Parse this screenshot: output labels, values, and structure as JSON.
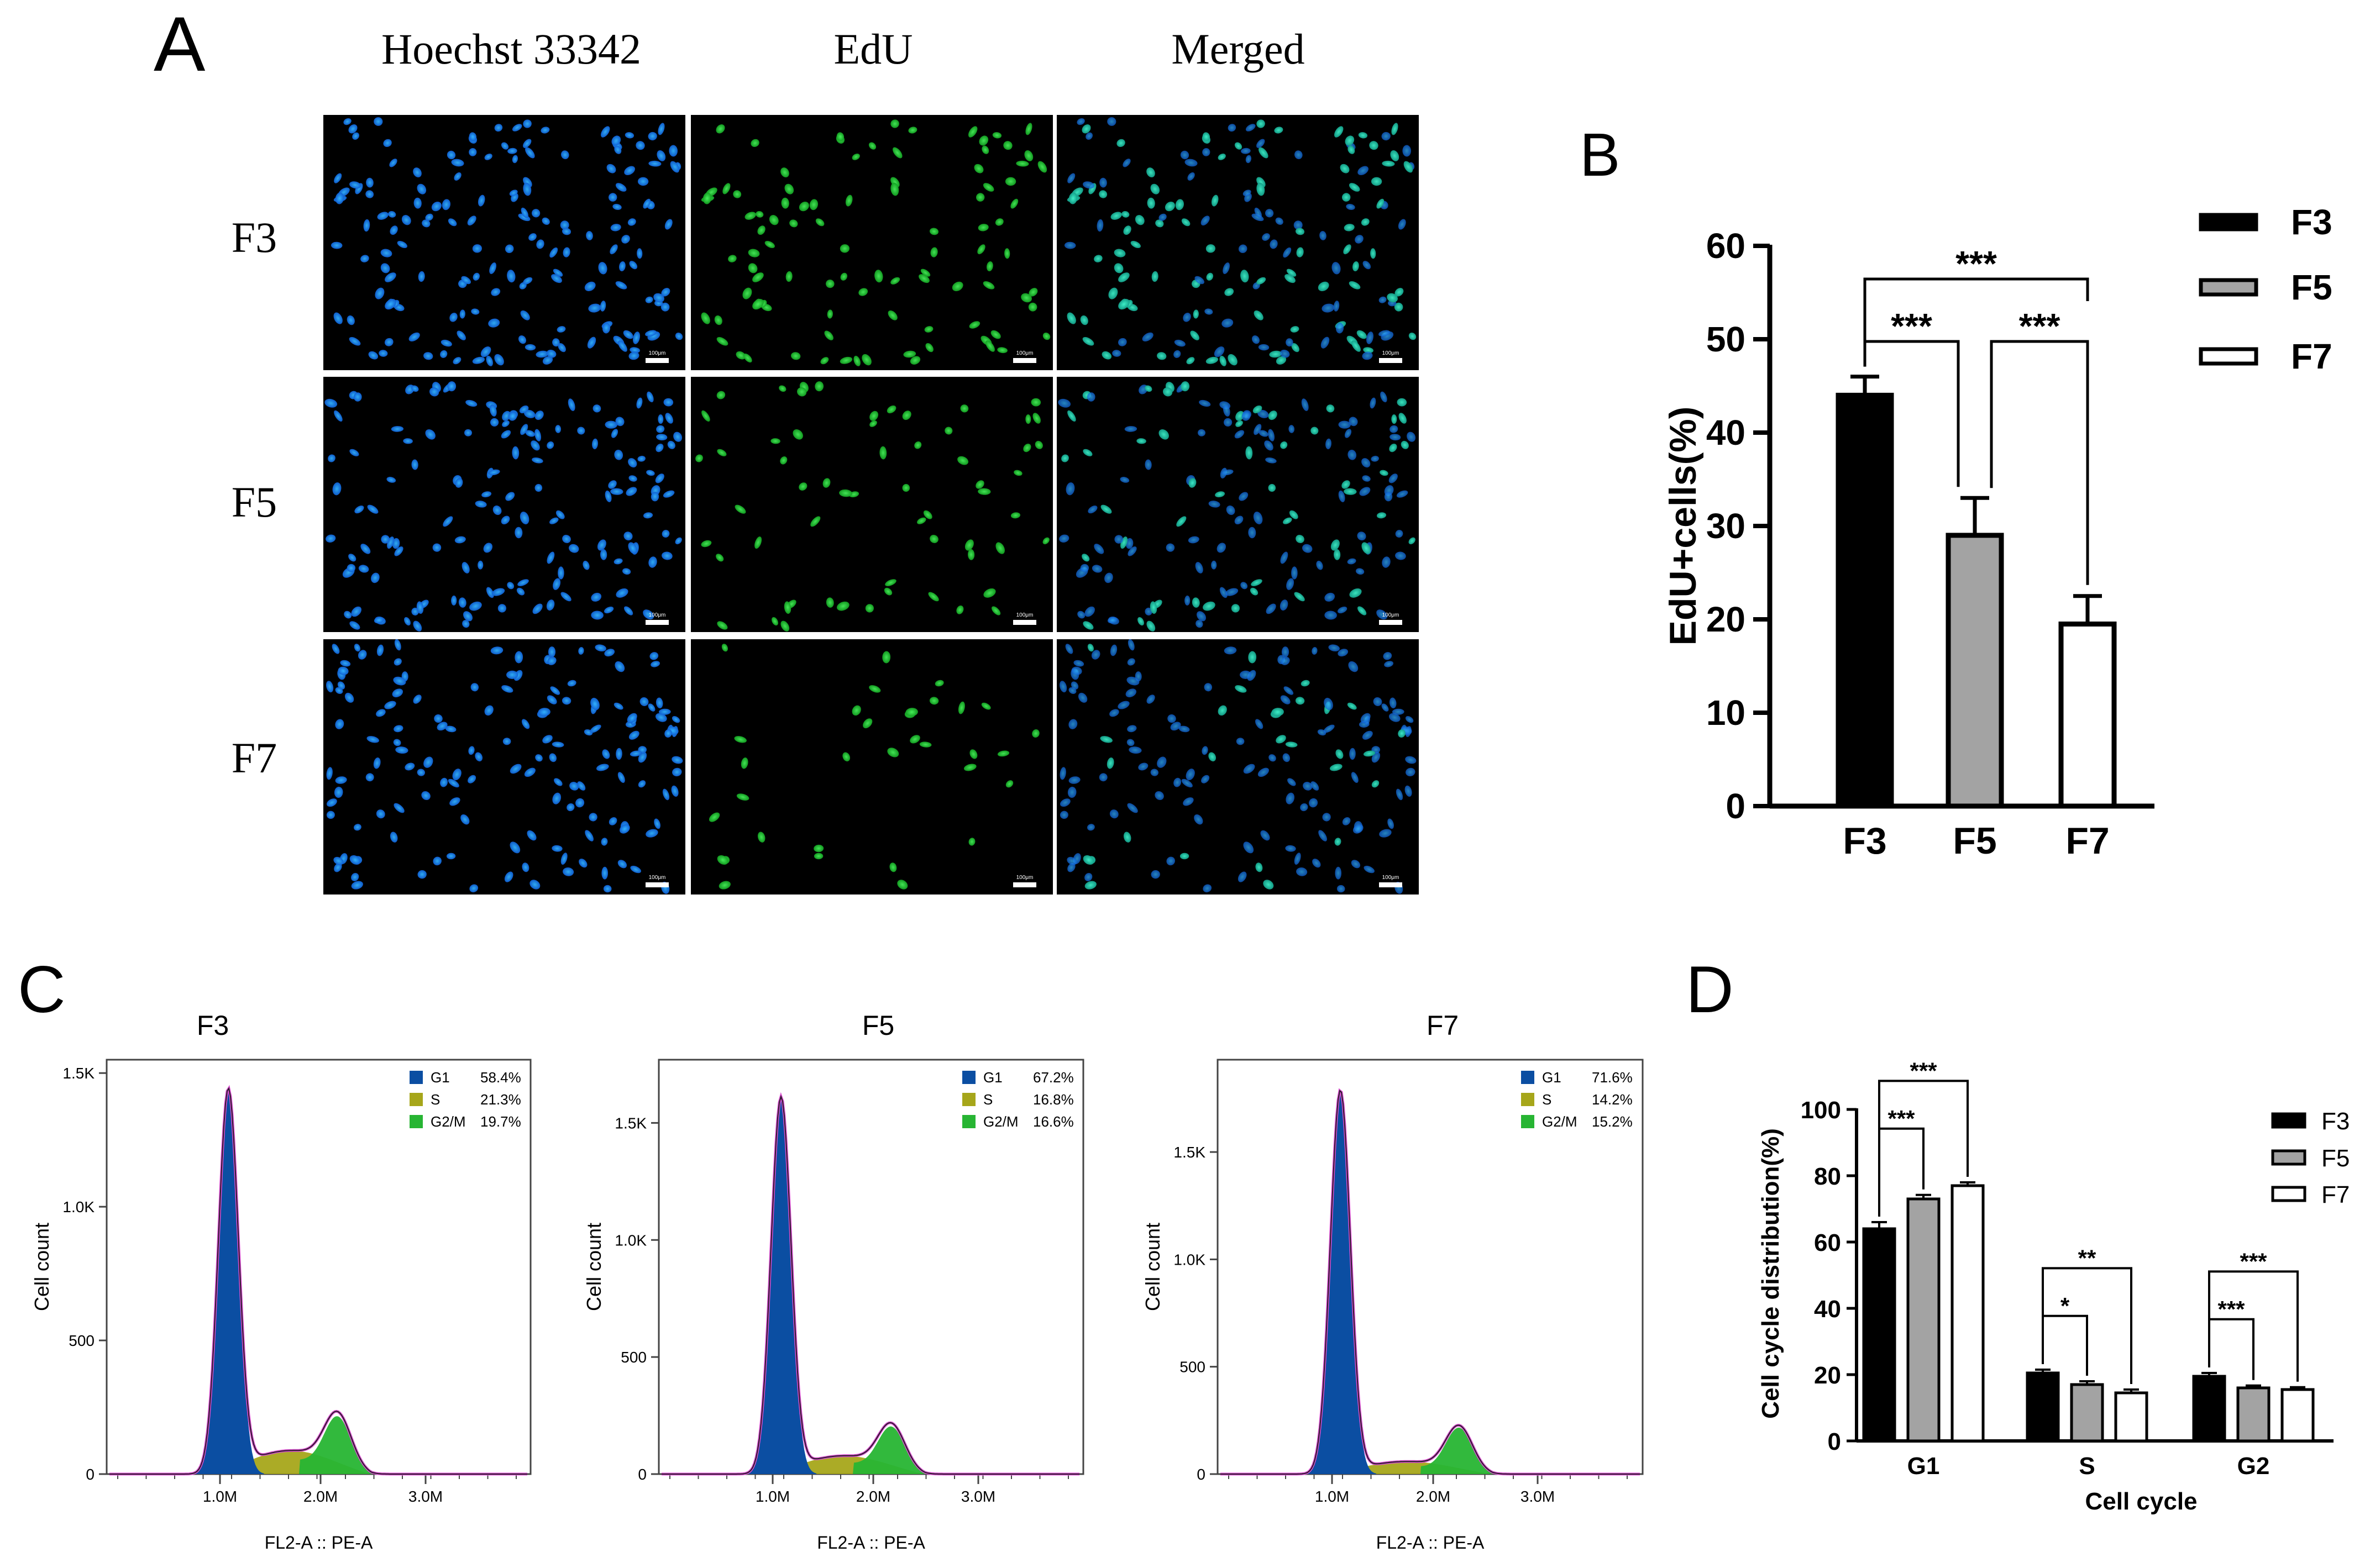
{
  "panels": {
    "a": {
      "letter": "A",
      "columns": [
        "Hoechst 33342",
        "EdU",
        "Merged"
      ],
      "rows": [
        "F3",
        "F5",
        "F7"
      ],
      "scale_bar_label": "100μm"
    },
    "b": {
      "letter": "B"
    },
    "c": {
      "letter": "C"
    },
    "d": {
      "letter": "D"
    }
  },
  "chart_data": [
    {
      "id": "B",
      "type": "bar",
      "categories": [
        "F3",
        "F5",
        "F7"
      ],
      "values": [
        44,
        29,
        19.5
      ],
      "errors": [
        2,
        4,
        3
      ],
      "fills": [
        "#000000",
        "#a3a3a3",
        "#ffffff"
      ],
      "ylabel": "EdU+cells(%)",
      "ylim": [
        0,
        60
      ],
      "yticks": [
        0,
        10,
        20,
        30,
        40,
        50,
        60
      ],
      "legend": [
        "F3",
        "F5",
        "F7"
      ],
      "legend_position": "right",
      "significance": [
        {
          "from": 0,
          "to": 1,
          "label": "***"
        },
        {
          "from": 1,
          "to": 2,
          "label": "***"
        },
        {
          "from": 0,
          "to": 2,
          "label": "***"
        }
      ]
    },
    {
      "id": "C-F3",
      "type": "area",
      "title": "F3",
      "xlabel": "FL2-A :: PE-A",
      "ylabel": "Cell count",
      "xticks": [
        "1.0M",
        "2.0M",
        "3.0M"
      ],
      "yticks": [
        "0",
        "500",
        "1.0K",
        "1.5K"
      ],
      "ymax": 1.55,
      "ytick_values": [
        0,
        0.5,
        1.0,
        1.5
      ],
      "g1_peak": 1.43,
      "g2_peak": 0.19,
      "s_height": 0.09,
      "legend": [
        {
          "phase": "G1",
          "value": "58.4%",
          "color": "#0b4ea2"
        },
        {
          "phase": "S",
          "value": "21.3%",
          "color": "#a6a61a"
        },
        {
          "phase": "G2/M",
          "value": "19.7%",
          "color": "#27b533"
        }
      ]
    },
    {
      "id": "C-F5",
      "type": "area",
      "title": "F5",
      "xlabel": "FL2-A :: PE-A",
      "ylabel": "Cell count",
      "xticks": [
        "1.0M",
        "2.0M",
        "3.0M"
      ],
      "yticks": [
        "0",
        "500",
        "1.0K",
        "1.5K"
      ],
      "ymax": 1.77,
      "ytick_values": [
        0,
        0.5,
        1.0,
        1.5
      ],
      "g1_peak": 1.6,
      "g2_peak": 0.18,
      "s_height": 0.08,
      "legend": [
        {
          "phase": "G1",
          "value": "67.2%",
          "color": "#0b4ea2"
        },
        {
          "phase": "S",
          "value": "16.8%",
          "color": "#a6a61a"
        },
        {
          "phase": "G2/M",
          "value": "16.6%",
          "color": "#27b533"
        }
      ]
    },
    {
      "id": "C-F7",
      "type": "area",
      "title": "F7",
      "xlabel": "FL2-A :: PE-A",
      "ylabel": "Cell count",
      "xticks": [
        "1.0M",
        "2.0M",
        "3.0M"
      ],
      "yticks": [
        "0",
        "500",
        "1.0K",
        "1.5K"
      ],
      "ymax": 1.93,
      "ytick_values": [
        0,
        0.5,
        1.0,
        1.5
      ],
      "g1_peak": 1.78,
      "g2_peak": 0.2,
      "s_height": 0.06,
      "legend": [
        {
          "phase": "G1",
          "value": "71.6%",
          "color": "#0b4ea2"
        },
        {
          "phase": "S",
          "value": "14.2%",
          "color": "#a6a61a"
        },
        {
          "phase": "G2/M",
          "value": "15.2%",
          "color": "#27b533"
        }
      ]
    },
    {
      "id": "D",
      "type": "bar",
      "categories": [
        "G1",
        "S",
        "G2"
      ],
      "series": [
        {
          "name": "F3",
          "values": [
            64,
            20.5,
            19.5
          ],
          "errors": [
            2,
            1,
            1
          ],
          "fill": "#000000"
        },
        {
          "name": "F5",
          "values": [
            73,
            17,
            16
          ],
          "errors": [
            1.2,
            1,
            0.7
          ],
          "fill": "#a3a3a3"
        },
        {
          "name": "F7",
          "values": [
            77,
            14.5,
            15.5
          ],
          "errors": [
            1,
            1,
            0.7
          ],
          "fill": "#ffffff"
        }
      ],
      "xlabel": "Cell cycle",
      "ylabel": "Cell cycle distribution(%)",
      "ylim": [
        0,
        100
      ],
      "yticks": [
        0,
        20,
        40,
        60,
        80,
        100
      ],
      "legend_position": "right",
      "significance": [
        {
          "group": 0,
          "from": 0,
          "to": 1,
          "label": "***"
        },
        {
          "group": 0,
          "from": 0,
          "to": 2,
          "label": "***"
        },
        {
          "group": 1,
          "from": 0,
          "to": 1,
          "label": "*"
        },
        {
          "group": 1,
          "from": 0,
          "to": 2,
          "label": "**"
        },
        {
          "group": 2,
          "from": 0,
          "to": 1,
          "label": "***"
        },
        {
          "group": 2,
          "from": 0,
          "to": 2,
          "label": "***"
        }
      ]
    }
  ]
}
